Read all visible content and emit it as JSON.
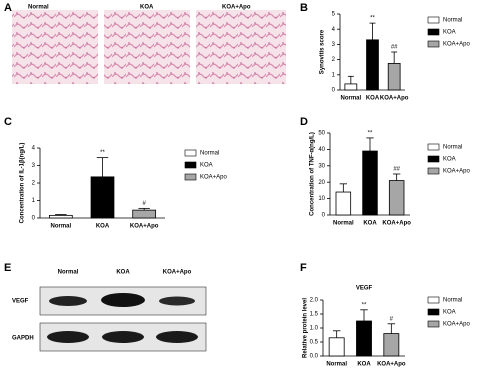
{
  "panel_labels": [
    "A",
    "B",
    "C",
    "D",
    "E",
    "F"
  ],
  "histology": {
    "labels": [
      "Normal",
      "KOA",
      "KOA+Apo"
    ]
  },
  "western_blot": {
    "lanes": [
      "Normal",
      "KOA",
      "KOA+Apo"
    ],
    "proteins": [
      "VEGF",
      "GAPDH"
    ]
  },
  "chart_data": [
    {
      "type": "bar",
      "y_label": "Synovitis score",
      "categories": [
        "Normal",
        "KOA",
        "KOA+Apo"
      ],
      "values": [
        0.4,
        3.3,
        1.75
      ],
      "errors": [
        0.5,
        1.1,
        0.75
      ],
      "value_annotations": [
        null,
        "**",
        "##"
      ],
      "colors": [
        "#ffffff",
        "#000000",
        "#a6a6a6"
      ],
      "ylim": [
        0,
        5
      ],
      "yticks": [
        0,
        1,
        2,
        3,
        4,
        5
      ]
    },
    {
      "type": "bar",
      "y_label": "Concentration of IL-1β(ng/L)",
      "categories": [
        "Normal",
        "KOA",
        "KOA+Apo"
      ],
      "values": [
        0.15,
        2.35,
        0.45
      ],
      "errors": [
        0.05,
        1.1,
        0.1
      ],
      "value_annotations": [
        null,
        "**",
        "#"
      ],
      "colors": [
        "#ffffff",
        "#000000",
        "#a6a6a6"
      ],
      "ylim": [
        0,
        4
      ],
      "yticks": [
        0,
        1,
        2,
        3,
        4
      ]
    },
    {
      "type": "bar",
      "y_label": "Concentration of TNF-α(ng/L)",
      "categories": [
        "Normal",
        "KOA",
        "KOA+Apo"
      ],
      "values": [
        14,
        39,
        21
      ],
      "errors": [
        5,
        8,
        4
      ],
      "value_annotations": [
        null,
        "**",
        "##"
      ],
      "colors": [
        "#ffffff",
        "#000000",
        "#a6a6a6"
      ],
      "ylim": [
        0,
        50
      ],
      "yticks": [
        0,
        10,
        20,
        30,
        40,
        50
      ]
    },
    {
      "type": "bar",
      "title": "VEGF",
      "y_label": "Relative protein level",
      "categories": [
        "Normal",
        "KOA",
        "KOA+Apo"
      ],
      "values": [
        0.65,
        1.25,
        0.8
      ],
      "errors": [
        0.25,
        0.4,
        0.35
      ],
      "value_annotations": [
        null,
        "**",
        "#"
      ],
      "colors": [
        "#ffffff",
        "#000000",
        "#a6a6a6"
      ],
      "ylim": [
        0,
        2
      ],
      "yticks": [
        {
          "value": 0,
          "label": "0.0"
        },
        0.5,
        {
          "value": 1,
          "label": "1.0"
        },
        1.5,
        {
          "value": 2,
          "label": "2.0"
        }
      ]
    }
  ]
}
